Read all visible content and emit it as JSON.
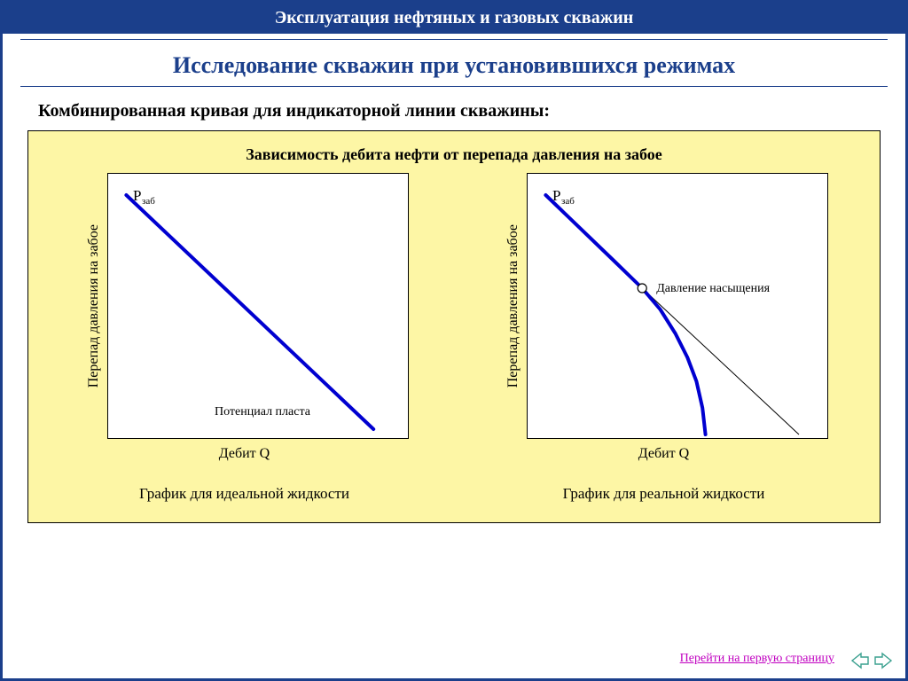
{
  "header": {
    "title": "Эксплуатация нефтяных и газовых скважин"
  },
  "subtitle": "Исследование скважин при установившихся режимах",
  "section_label": "Комбинированная кривая для индикаторной линии скважины:",
  "figure": {
    "title": "Зависимость дебита нефти от перепада давления на забое",
    "background_color": "#fdf6a5",
    "plot_background": "#ffffff",
    "border_color": "#000000",
    "chart_left": {
      "type": "line",
      "y_axis_label": "Перепад давления на забое",
      "x_axis_label": "Дебит Q",
      "corner_label": "Pзаб",
      "inner_label": "Потенциал пласта",
      "caption": "График для идеальной жидкости",
      "line_color": "#0000d0",
      "line_width": 4,
      "xlim": [
        0,
        100
      ],
      "ylim": [
        0,
        100
      ],
      "points": [
        [
          6,
          92
        ],
        [
          88,
          4
        ]
      ]
    },
    "chart_right": {
      "type": "line",
      "y_axis_label": "Перепад давления на забое",
      "x_axis_label": "Дебит Q",
      "corner_label": "Pзаб",
      "marker_label": "Давление насыщения",
      "caption": "График для реальной жидкости",
      "line_color": "#0000d0",
      "line_width": 4,
      "thin_line_color": "#000000",
      "thin_line_width": 1,
      "marker_style": "circle",
      "marker_fill": "#ffffff",
      "marker_stroke": "#000000",
      "marker_radius": 5,
      "xlim": [
        0,
        100
      ],
      "ylim": [
        0,
        100
      ],
      "main_curve": [
        [
          6,
          92
        ],
        [
          28,
          68
        ],
        [
          38,
          57
        ],
        [
          44,
          49
        ],
        [
          49,
          40
        ],
        [
          53,
          31
        ],
        [
          56,
          22
        ],
        [
          58,
          12
        ],
        [
          59,
          2
        ]
      ],
      "thin_line": [
        [
          38,
          57
        ],
        [
          90,
          2
        ]
      ],
      "marker_point": [
        38,
        57
      ]
    }
  },
  "footer": {
    "link_text": "Перейти на первую страницу"
  },
  "colors": {
    "brand_blue": "#1b3f8b",
    "link_magenta": "#c000c0",
    "arrow_teal": "#3aa08f"
  }
}
